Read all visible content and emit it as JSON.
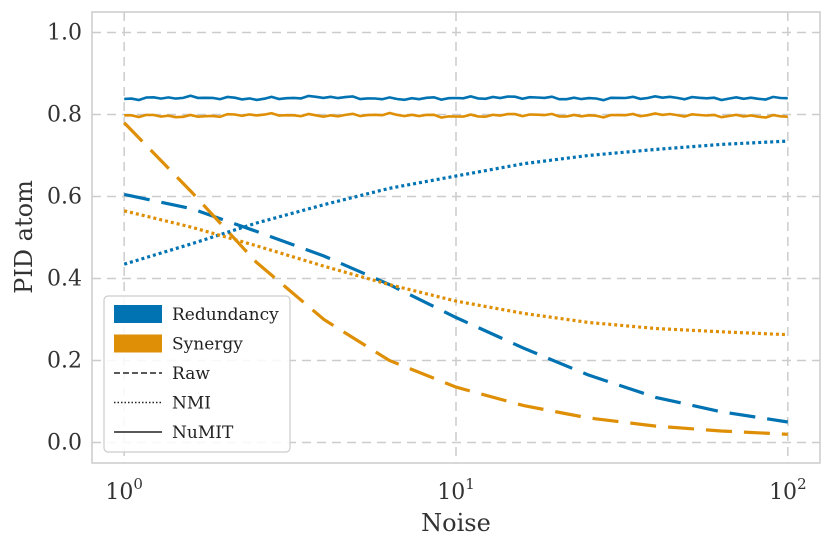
{
  "chart_data": {
    "type": "line",
    "xscale": "log",
    "xlabel": "Noise",
    "ylabel": "PID atom",
    "xlim": [
      0.8,
      125
    ],
    "ylim": [
      -0.05,
      1.05
    ],
    "xticks": [
      {
        "value": 1,
        "base": "10",
        "exp": "0"
      },
      {
        "value": 10,
        "base": "10",
        "exp": "1"
      },
      {
        "value": 100,
        "base": "10",
        "exp": "2"
      }
    ],
    "yticks": [
      {
        "value": 0.0,
        "label": "0.0"
      },
      {
        "value": 0.2,
        "label": "0.2"
      },
      {
        "value": 0.4,
        "label": "0.4"
      },
      {
        "value": 0.6,
        "label": "0.6"
      },
      {
        "value": 0.8,
        "label": "0.8"
      },
      {
        "value": 1.0,
        "label": "1.0"
      }
    ],
    "grid": true,
    "x": [
      1,
      1.6,
      2.5,
      4,
      6.3,
      10,
      16,
      25,
      40,
      63,
      100
    ],
    "series": [
      {
        "name": "Redundancy (Raw)",
        "atom": "redundancy",
        "method": "raw",
        "values": [
          0.605,
          0.57,
          0.515,
          0.455,
          0.385,
          0.305,
          0.23,
          0.165,
          0.11,
          0.075,
          0.05
        ]
      },
      {
        "name": "Synergy (Raw)",
        "atom": "synergy",
        "method": "raw",
        "values": [
          0.78,
          0.61,
          0.44,
          0.3,
          0.2,
          0.135,
          0.09,
          0.06,
          0.04,
          0.028,
          0.02
        ]
      },
      {
        "name": "Redundancy (NMI)",
        "atom": "redundancy",
        "method": "nmi",
        "values": [
          0.435,
          0.485,
          0.535,
          0.58,
          0.62,
          0.65,
          0.68,
          0.7,
          0.715,
          0.727,
          0.735
        ]
      },
      {
        "name": "Synergy (NMI)",
        "atom": "synergy",
        "method": "nmi",
        "values": [
          0.565,
          0.525,
          0.48,
          0.43,
          0.385,
          0.345,
          0.315,
          0.293,
          0.278,
          0.27,
          0.263
        ]
      },
      {
        "name": "Redundancy (NuMIT)",
        "atom": "redundancy",
        "method": "numit",
        "values": [
          0.838,
          0.842,
          0.838,
          0.843,
          0.838,
          0.84,
          0.842,
          0.838,
          0.842,
          0.839,
          0.84
        ]
      },
      {
        "name": "Synergy (NuMIT)",
        "atom": "synergy",
        "method": "numit",
        "values": [
          0.798,
          0.795,
          0.8,
          0.797,
          0.8,
          0.795,
          0.8,
          0.796,
          0.8,
          0.797,
          0.795
        ]
      }
    ],
    "colors": {
      "redundancy": "#0173b2",
      "synergy": "#de8f05",
      "legend_line": "#222222"
    },
    "legend": {
      "position": "bottom-left",
      "entries": [
        {
          "label": "Redundancy",
          "kind": "patch",
          "color_key": "redundancy"
        },
        {
          "label": "Synergy",
          "kind": "patch",
          "color_key": "synergy"
        },
        {
          "label": "Raw",
          "kind": "line",
          "style": "dashed"
        },
        {
          "label": "NMI",
          "kind": "line",
          "style": "dotted"
        },
        {
          "label": "NuMIT",
          "kind": "line",
          "style": "solid"
        }
      ]
    }
  }
}
